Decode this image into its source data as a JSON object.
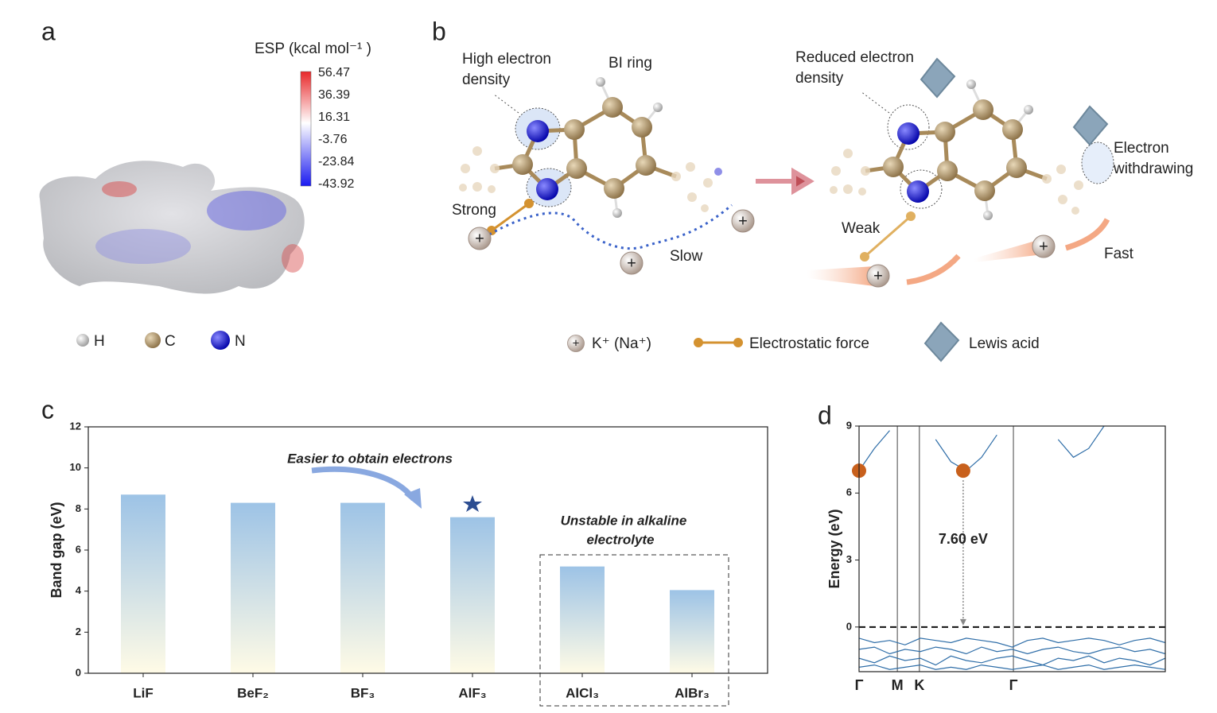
{
  "panels": {
    "a": {
      "letter": "a",
      "colorbar_title": "ESP (kcal mol⁻¹ )",
      "colorbar_ticks": [
        56.47,
        36.39,
        16.31,
        -3.76,
        -23.84,
        -43.92
      ],
      "legend": [
        "H",
        "C",
        "N"
      ]
    },
    "b": {
      "letter": "b",
      "labels": [
        "High electron",
        "density",
        "BI ring",
        "Strong",
        "Slow",
        "Reduced electron",
        "density",
        "Electron",
        "withdrawing",
        "Weak",
        "Fast"
      ],
      "legend": [
        "K⁺ (Na⁺)",
        "Electrostatic force",
        "Lewis acid"
      ]
    }
  },
  "chart_data": [
    {
      "type": "bar",
      "label": "c",
      "ylabel": "Band gap (eV)",
      "categories": [
        "LiF",
        "BeF₂",
        "BF₃",
        "AlF₃",
        "AlCl₃",
        "AlBr₃"
      ],
      "values": [
        8.7,
        8.3,
        8.3,
        7.6,
        5.2,
        4.05
      ],
      "color": [
        "#9dc3e6",
        "#fffbe6"
      ],
      "ylim": [
        0,
        12
      ],
      "yticks": [
        0,
        2,
        4,
        6,
        8,
        10,
        12
      ],
      "annotations": [
        "Easier to obtain electrons",
        "Unstable in alkaline",
        "electrolyte"
      ]
    },
    {
      "type": "line",
      "label": "d",
      "ylabel": "Energy (eV)",
      "x": [
        0,
        0.05,
        0.1,
        0.15,
        0.2,
        0.25,
        0.3,
        0.35,
        0.4,
        0.45,
        0.5,
        0.55,
        0.6,
        0.65,
        0.7,
        0.75,
        0.8,
        0.85,
        0.9,
        0.95,
        1
      ],
      "series": [
        {
          "color": "#2f6ea8",
          "values": [
            7.0,
            8.0,
            8.8,
            null,
            null,
            8.4,
            7.4,
            7.0,
            7.6,
            8.6,
            null,
            null,
            null,
            8.4,
            7.6,
            8.0,
            9.0,
            null,
            null,
            null,
            null
          ]
        },
        {
          "color": "#2f6ea8",
          "values": [
            -0.5,
            -0.7,
            -0.6,
            -0.8,
            -0.5,
            -0.6,
            -0.7,
            -0.5,
            -0.6,
            -0.7,
            -0.9,
            -0.6,
            -0.5,
            -0.7,
            -0.6,
            -0.5,
            -0.6,
            -0.8,
            -0.6,
            -0.5,
            -0.7
          ]
        },
        {
          "color": "#2f6ea8",
          "values": [
            -1.0,
            -0.9,
            -1.2,
            -1.0,
            -1.1,
            -0.9,
            -1.0,
            -1.2,
            -0.9,
            -1.1,
            -1.0,
            -1.2,
            -1.0,
            -0.9,
            -1.1,
            -1.2,
            -1.0,
            -0.9,
            -1.1,
            -1.0,
            -1.2
          ]
        },
        {
          "color": "#2f6ea8",
          "values": [
            -1.4,
            -1.6,
            -1.3,
            -1.5,
            -1.4,
            -1.7,
            -1.3,
            -1.5,
            -1.6,
            -1.4,
            -1.3,
            -1.5,
            -1.7,
            -1.4,
            -1.5,
            -1.3,
            -1.6,
            -1.4,
            -1.5,
            -1.7,
            -1.4
          ]
        },
        {
          "color": "#2f6ea8",
          "values": [
            -1.8,
            -1.7,
            -1.9,
            -1.8,
            -1.7,
            -1.9,
            -1.8,
            -1.9,
            -1.7,
            -1.8,
            -1.9,
            -1.8,
            -1.7,
            -1.9,
            -1.8,
            -1.7,
            -1.9,
            -1.8,
            -1.7,
            -1.8,
            -1.9
          ]
        }
      ],
      "points": {
        "x": [
          0,
          0.34
        ],
        "y": [
          7.0,
          7.0
        ],
        "color": "#c8601c"
      },
      "xlim": [
        0,
        1
      ],
      "xticks": [
        {
          "value": 0,
          "label": "Γ"
        },
        {
          "value": 0.125,
          "label": "M"
        },
        {
          "value": 0.197,
          "label": "K"
        },
        {
          "value": 0.504,
          "label": "Γ"
        }
      ],
      "ylim": [
        -2,
        9
      ],
      "yticks": [
        0,
        3,
        6,
        9
      ],
      "reference_line": 0,
      "annotations": [
        "7.60 eV"
      ]
    }
  ]
}
